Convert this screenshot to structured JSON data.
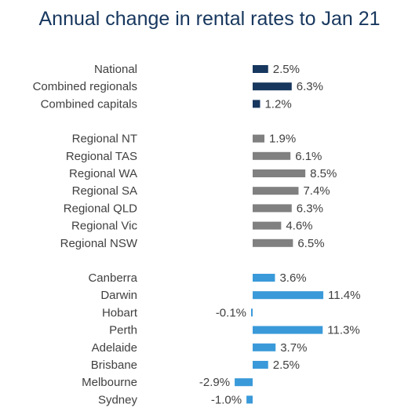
{
  "chart_data": {
    "type": "bar",
    "orientation": "horizontal",
    "title": "Annual change in rental rates to Jan 21",
    "unit": "%",
    "colors": {
      "overall": "#17375e",
      "regional": "#808080",
      "capital": "#3a9ad9"
    },
    "groups": [
      {
        "name": "overall",
        "items": [
          {
            "category": "National",
            "value": 2.5,
            "label": "2.5%"
          },
          {
            "category": "Combined regionals",
            "value": 6.3,
            "label": "6.3%"
          },
          {
            "category": "Combined capitals",
            "value": 1.2,
            "label": "1.2%"
          }
        ]
      },
      {
        "name": "regional",
        "items": [
          {
            "category": "Regional NT",
            "value": 1.9,
            "label": "1.9%"
          },
          {
            "category": "Regional TAS",
            "value": 6.1,
            "label": "6.1%"
          },
          {
            "category": "Regional WA",
            "value": 8.5,
            "label": "8.5%"
          },
          {
            "category": "Regional SA",
            "value": 7.4,
            "label": "7.4%"
          },
          {
            "category": "Regional QLD",
            "value": 6.3,
            "label": "6.3%"
          },
          {
            "category": "Regional Vic",
            "value": 4.6,
            "label": "4.6%"
          },
          {
            "category": "Regional NSW",
            "value": 6.5,
            "label": "6.5%"
          }
        ]
      },
      {
        "name": "capital",
        "items": [
          {
            "category": "Canberra",
            "value": 3.6,
            "label": "3.6%"
          },
          {
            "category": "Darwin",
            "value": 11.4,
            "label": "11.4%"
          },
          {
            "category": "Hobart",
            "value": -0.1,
            "label": "-0.1%"
          },
          {
            "category": "Perth",
            "value": 11.3,
            "label": "11.3%"
          },
          {
            "category": "Adelaide",
            "value": 3.7,
            "label": "3.7%"
          },
          {
            "category": "Brisbane",
            "value": 2.5,
            "label": "2.5%"
          },
          {
            "category": "Melbourne",
            "value": -2.9,
            "label": "-2.9%"
          },
          {
            "category": "Sydney",
            "value": -1.0,
            "label": "-1.0%"
          }
        ]
      }
    ]
  }
}
